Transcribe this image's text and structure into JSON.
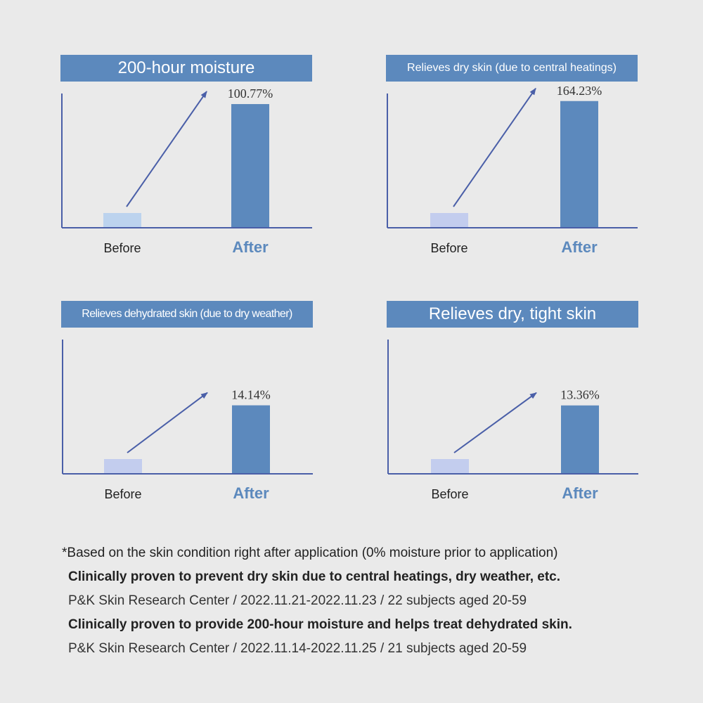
{
  "colors": {
    "title_bg": "#5c89bd",
    "after_bar": "#5c89bd",
    "before_bar_1": "#bcd3ee",
    "before_bar": "#c3cdee",
    "axis": "#4a5fa8",
    "arrow": "#4a5fa8",
    "after_label": "#5c89bd"
  },
  "chart_data": [
    {
      "type": "bar",
      "title": "200-hour moisture",
      "categories": [
        "Before",
        "After"
      ],
      "values": [
        0,
        100.77
      ],
      "value_labels": [
        "",
        "100.77%"
      ],
      "annotation": "arrow from Before to After",
      "ylim": [
        0,
        110
      ]
    },
    {
      "type": "bar",
      "title": "Relieves dry skin (due to central heatings)",
      "categories": [
        "Before",
        "After"
      ],
      "values": [
        0,
        164.23
      ],
      "value_labels": [
        "",
        "164.23%"
      ],
      "annotation": "arrow from Before to After",
      "ylim": [
        0,
        175
      ]
    },
    {
      "type": "bar",
      "title": "Relieves dehydrated skin (due to dry weather)",
      "categories": [
        "Before",
        "After"
      ],
      "values": [
        0,
        14.14
      ],
      "value_labels": [
        "",
        "14.14%"
      ],
      "annotation": "arrow from Before to After",
      "ylim": [
        0,
        28
      ]
    },
    {
      "type": "bar",
      "title": "Relieves dry, tight skin",
      "categories": [
        "Before",
        "After"
      ],
      "values": [
        0,
        13.36
      ],
      "value_labels": [
        "",
        "13.36%"
      ],
      "annotation": "arrow from Before to After",
      "ylim": [
        0,
        26.5
      ]
    }
  ],
  "notes": [
    "*Based on the skin condition right after application (0% moisture prior to application)",
    "Clinically proven to prevent dry skin due to central heatings, dry weather, etc.",
    "P&K Skin Research Center / 2022.11.21-2022.11.23 / 22 subjects aged 20-59",
    "Clinically proven to provide 200-hour moisture and helps treat dehydrated skin.",
    "P&K Skin Research Center / 2022.11.14-2022.11.25 / 21 subjects aged 20-59"
  ]
}
